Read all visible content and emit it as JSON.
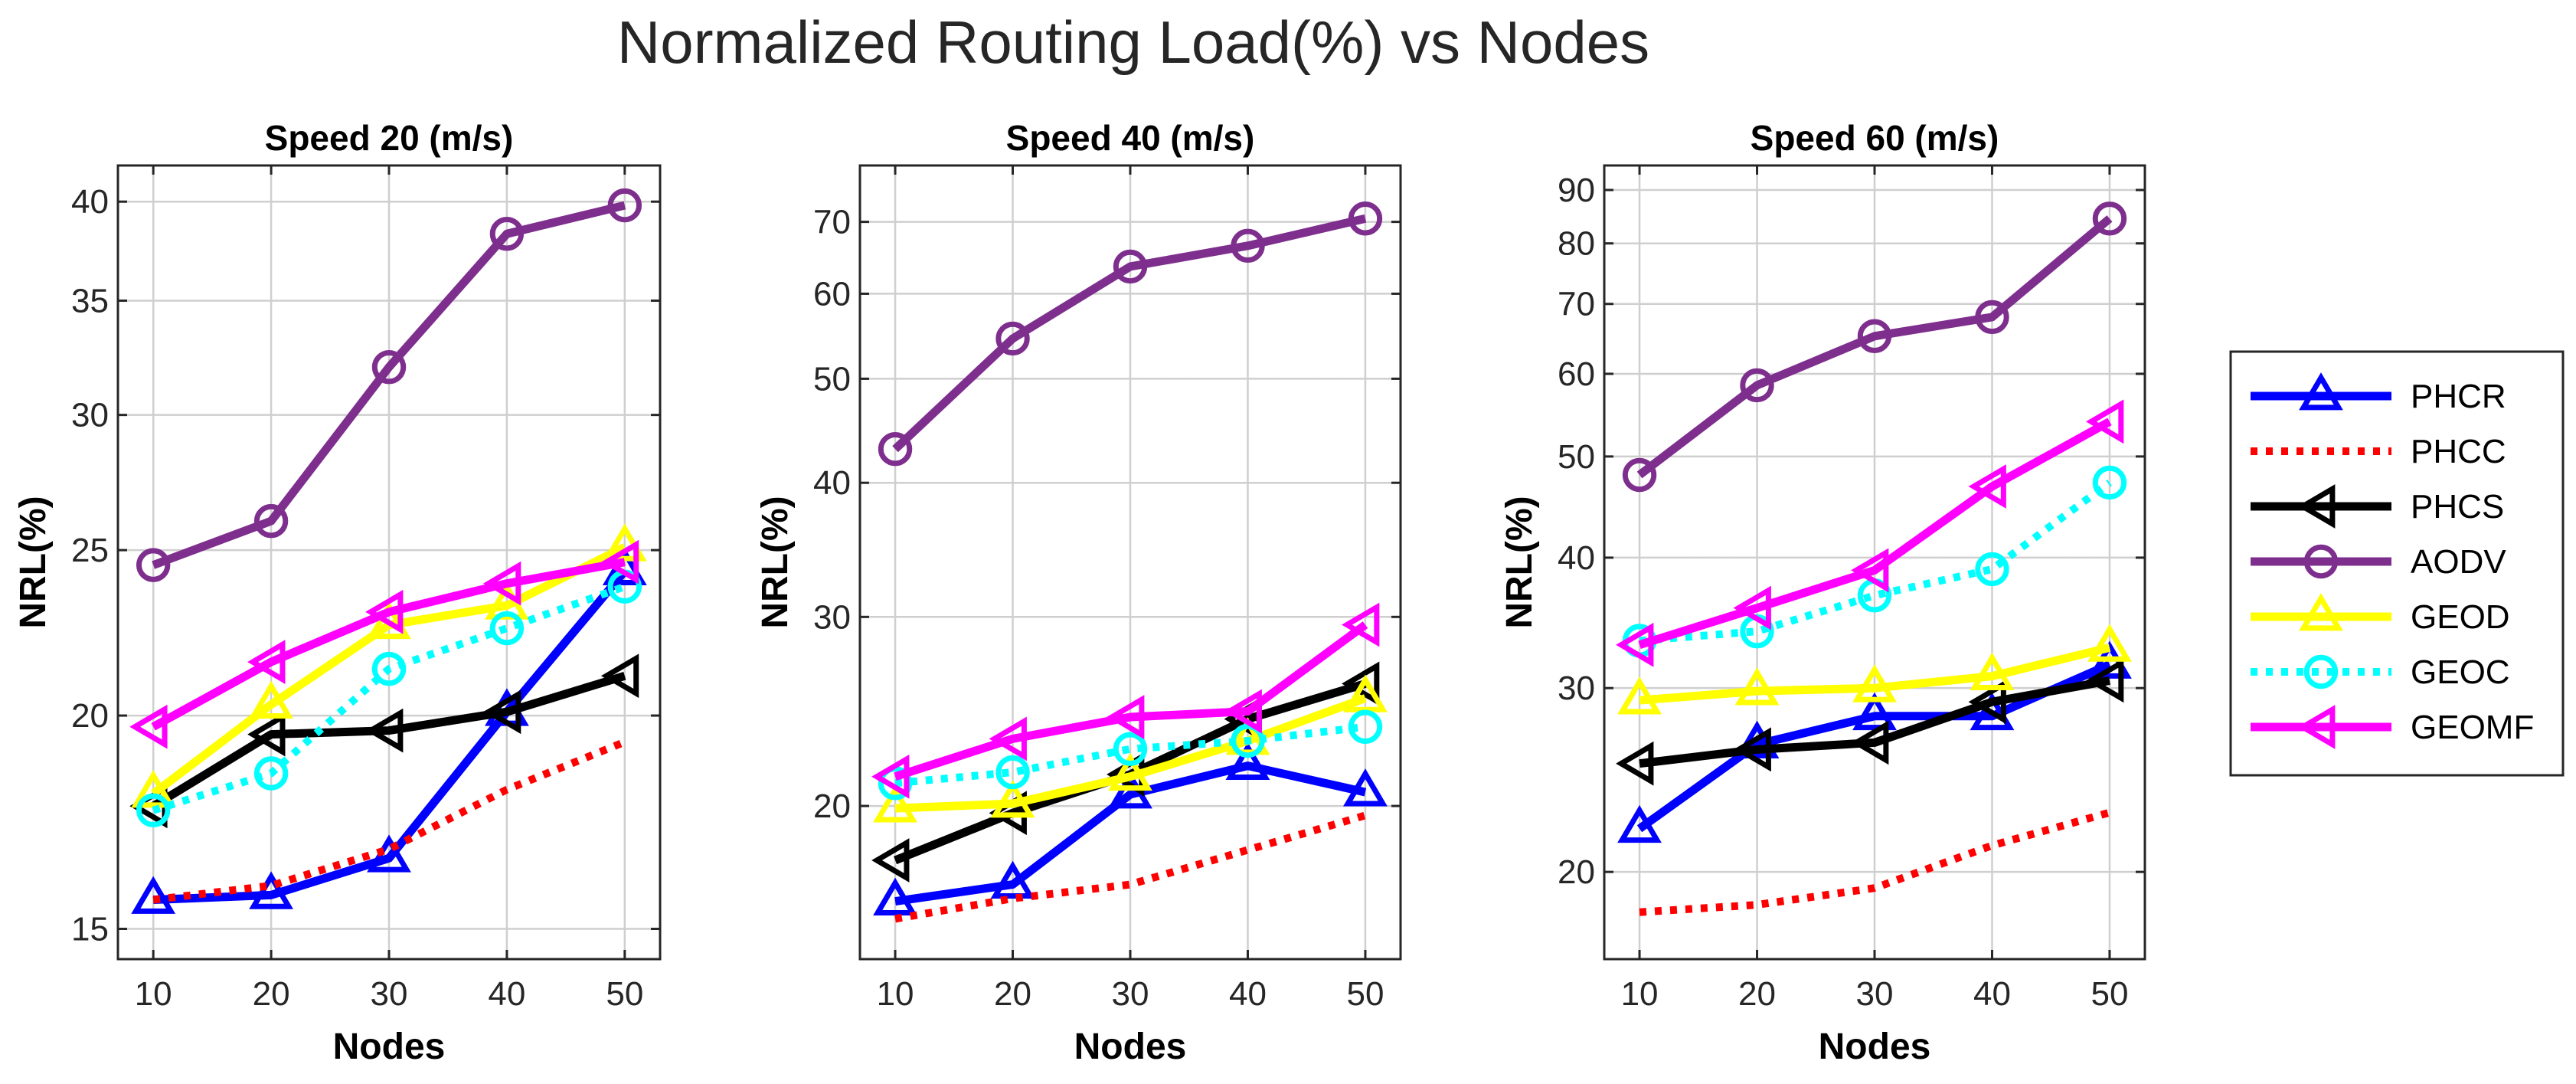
{
  "figure_title": "Normalized Routing Load(%) vs Nodes",
  "chart_data": [
    {
      "type": "line",
      "title": "Speed 20 (m/s)",
      "xlabel": "Nodes",
      "ylabel": "NRL(%)",
      "yscale": "log",
      "x": [
        10,
        20,
        30,
        40,
        50
      ],
      "xticks": [
        "10",
        "20",
        "30",
        "40",
        "50"
      ],
      "xlim": [
        7,
        53
      ],
      "yticks": [
        15,
        20,
        25,
        30,
        35,
        40
      ],
      "ytick_labels": [
        "15",
        "20",
        "25",
        "30",
        "35",
        "40"
      ],
      "ylim": [
        14.4,
        42.0
      ],
      "grid": true,
      "series": [
        {
          "name": "PHCR",
          "values": [
            15.6,
            15.7,
            16.5,
            20.1,
            24.3
          ]
        },
        {
          "name": "PHCC",
          "values": [
            15.6,
            15.9,
            16.7,
            18.1,
            19.3
          ]
        },
        {
          "name": "PHCS",
          "values": [
            17.7,
            19.5,
            19.6,
            20.1,
            21.1
          ]
        },
        {
          "name": "AODV",
          "values": [
            24.5,
            26.0,
            32.0,
            38.3,
            39.8
          ]
        },
        {
          "name": "GEOD",
          "values": [
            18.0,
            20.3,
            22.6,
            23.2,
            25.1
          ]
        },
        {
          "name": "GEOC",
          "values": [
            17.6,
            18.5,
            21.3,
            22.5,
            23.8
          ]
        },
        {
          "name": "GEOMF",
          "values": [
            19.7,
            21.5,
            23.0,
            23.9,
            24.6
          ]
        }
      ]
    },
    {
      "type": "line",
      "title": "Speed 40 (m/s)",
      "xlabel": "Nodes",
      "ylabel": "NRL(%)",
      "yscale": "log",
      "x": [
        10,
        20,
        30,
        40,
        50
      ],
      "xticks": [
        "10",
        "20",
        "30",
        "40",
        "50"
      ],
      "xlim": [
        7,
        53
      ],
      "yticks": [
        20,
        30,
        40,
        50,
        60,
        70
      ],
      "ytick_labels": [
        "20",
        "30",
        "40",
        "50",
        "60",
        "70"
      ],
      "ylim": [
        14.4,
        79.0
      ],
      "grid": true,
      "series": [
        {
          "name": "PHCR",
          "values": [
            16.3,
            16.9,
            20.5,
            21.8,
            20.6
          ]
        },
        {
          "name": "PHCC",
          "values": [
            15.7,
            16.4,
            16.9,
            18.2,
            19.6
          ]
        },
        {
          "name": "PHCS",
          "values": [
            17.8,
            19.7,
            21.4,
            24.1,
            26.0
          ]
        },
        {
          "name": "AODV",
          "values": [
            43.0,
            54.5,
            63.6,
            66.5,
            70.5
          ]
        },
        {
          "name": "GEOD",
          "values": [
            19.9,
            20.1,
            21.3,
            23.0,
            25.2
          ]
        },
        {
          "name": "GEOC",
          "values": [
            21.0,
            21.5,
            22.6,
            23.0,
            23.7
          ]
        },
        {
          "name": "GEOMF",
          "values": [
            21.3,
            23.1,
            24.2,
            24.5,
            29.5
          ]
        }
      ]
    },
    {
      "type": "line",
      "title": "Speed 60 (m/s)",
      "xlabel": "Nodes",
      "ylabel": "NRL(%)",
      "yscale": "log",
      "x": [
        10,
        20,
        30,
        40,
        50
      ],
      "xticks": [
        "10",
        "20",
        "30",
        "40",
        "50"
      ],
      "xlim": [
        7,
        53
      ],
      "yticks": [
        20,
        30,
        40,
        50,
        60,
        70,
        80,
        90
      ],
      "ytick_labels": [
        "20",
        "30",
        "40",
        "50",
        "60",
        "70",
        "80",
        "90"
      ],
      "ylim": [
        16.5,
        95.0
      ],
      "grid": true,
      "series": [
        {
          "name": "PHCR",
          "values": [
            22.0,
            26.5,
            28.2,
            28.2,
            31.6
          ]
        },
        {
          "name": "PHCC",
          "values": [
            18.3,
            18.6,
            19.3,
            21.2,
            22.8
          ]
        },
        {
          "name": "PHCS",
          "values": [
            25.4,
            26.2,
            26.6,
            29.1,
            30.5
          ]
        },
        {
          "name": "AODV",
          "values": [
            48.0,
            58.5,
            65.2,
            68.0,
            84.5
          ]
        },
        {
          "name": "GEOD",
          "values": [
            29.2,
            29.8,
            30.0,
            30.8,
            32.8
          ]
        },
        {
          "name": "GEOC",
          "values": [
            33.3,
            34.0,
            36.8,
            39.0,
            47.2
          ]
        },
        {
          "name": "GEOMF",
          "values": [
            33.0,
            35.8,
            38.9,
            46.8,
            54.0
          ]
        }
      ]
    }
  ],
  "legend": [
    "PHCR",
    "PHCC",
    "PHCS",
    "AODV",
    "GEOD",
    "GEOC",
    "GEOMF"
  ],
  "series_styles": {
    "PHCR": {
      "color": "#0000ff",
      "dash": "solid",
      "marker": "triangle-up"
    },
    "PHCC": {
      "color": "#ff0000",
      "dash": "dotted",
      "marker": "none"
    },
    "PHCS": {
      "color": "#000000",
      "dash": "solid",
      "marker": "triangle-left"
    },
    "AODV": {
      "color": "#7e2f8e",
      "dash": "solid",
      "marker": "circle"
    },
    "GEOD": {
      "color": "#ffff00",
      "dash": "solid",
      "marker": "triangle-up"
    },
    "GEOC": {
      "color": "#00ffff",
      "dash": "dotted",
      "marker": "circle"
    },
    "GEOMF": {
      "color": "#ff00ff",
      "dash": "solid",
      "marker": "triangle-left"
    }
  }
}
